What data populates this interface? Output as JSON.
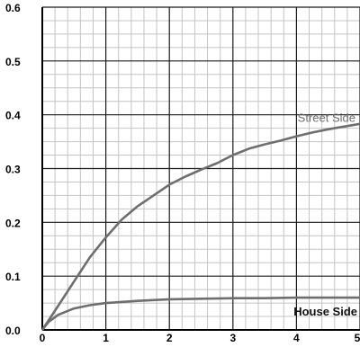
{
  "chart_data": {
    "type": "line",
    "title": "",
    "xlabel": "",
    "ylabel": "",
    "xlim": [
      0,
      5
    ],
    "ylim": [
      0,
      0.6
    ],
    "x_ticks": [
      "0",
      "1",
      "2",
      "3",
      "4",
      "5"
    ],
    "y_ticks": [
      "0.0",
      "0.1",
      "0.2",
      "0.3",
      "0.4",
      "0.5",
      "0.6"
    ],
    "grid": true,
    "series": [
      {
        "name": "Street Side",
        "color": "#6e6e6e",
        "x": [
          0,
          0.25,
          0.5,
          0.75,
          1.0,
          1.25,
          1.5,
          1.75,
          2.0,
          2.25,
          2.5,
          2.75,
          3.0,
          3.25,
          3.5,
          3.75,
          4.0,
          4.25,
          4.5,
          4.75,
          5.0
        ],
        "y": [
          0,
          0.045,
          0.09,
          0.135,
          0.172,
          0.205,
          0.23,
          0.25,
          0.27,
          0.285,
          0.298,
          0.31,
          0.325,
          0.337,
          0.345,
          0.352,
          0.36,
          0.367,
          0.373,
          0.378,
          0.383
        ]
      },
      {
        "name": "House Side",
        "color": "#6e6e6e",
        "x": [
          0,
          0.1,
          0.25,
          0.5,
          0.75,
          1.0,
          1.5,
          2.0,
          2.5,
          3.0,
          3.5,
          4.0,
          4.5,
          5.0
        ],
        "y": [
          0,
          0.015,
          0.028,
          0.04,
          0.046,
          0.05,
          0.054,
          0.057,
          0.058,
          0.059,
          0.059,
          0.06,
          0.06,
          0.06
        ]
      }
    ]
  }
}
